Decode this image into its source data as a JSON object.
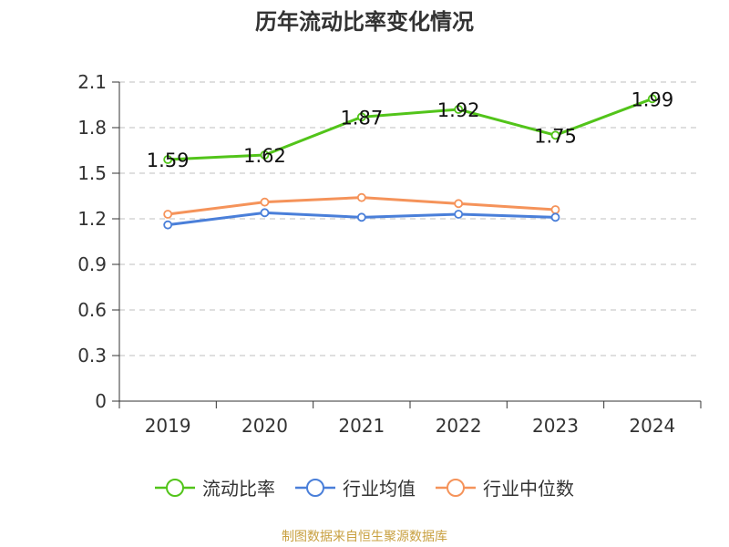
{
  "chart_data": {
    "type": "line",
    "title": "历年流动比率变化情况",
    "categories": [
      "2019",
      "2020",
      "2021",
      "2022",
      "2023",
      "2024"
    ],
    "ylim": [
      0,
      2.1
    ],
    "yticks": [
      "0",
      "0.3",
      "0.6",
      "0.9",
      "1.2",
      "1.5",
      "1.8",
      "2.1"
    ],
    "grid": true,
    "legend_position": "bottom",
    "series": [
      {
        "name": "流动比率",
        "color": "#52c41a",
        "values": [
          1.59,
          1.62,
          1.87,
          1.92,
          1.75,
          1.99
        ],
        "data_labels": [
          "1.59",
          "1.62",
          "1.87",
          "1.92",
          "1.75",
          "1.99"
        ]
      },
      {
        "name": "行业均值",
        "color": "#4a7fd9",
        "values": [
          1.16,
          1.24,
          1.21,
          1.23,
          1.21,
          null
        ]
      },
      {
        "name": "行业中位数",
        "color": "#f5935a",
        "values": [
          1.23,
          1.31,
          1.34,
          1.3,
          1.26,
          null
        ]
      }
    ]
  },
  "source": "制图数据来自恒生聚源数据库"
}
